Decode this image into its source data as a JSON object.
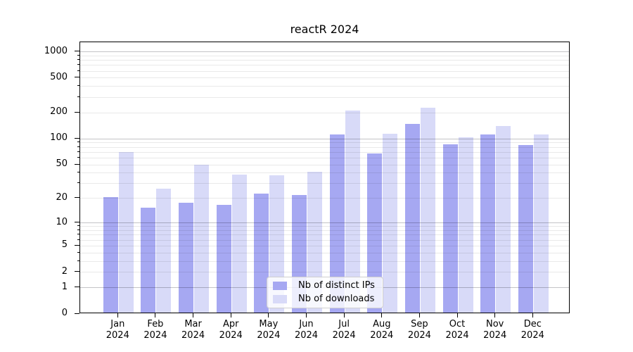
{
  "title": "reactR 2024",
  "colors": {
    "ips": "#a6a8f2",
    "downloads": "#d8daf8",
    "grid_minor": "#e9e9e9",
    "grid_major": "#c3c3c6",
    "axis": "#000000",
    "legend_border": "#cfcfcf"
  },
  "chart_data": {
    "type": "bar",
    "title": "reactR 2024",
    "categories": [
      "Jan 2024",
      "Feb 2024",
      "Mar 2024",
      "Apr 2024",
      "May 2024",
      "Jun 2024",
      "Jul 2024",
      "Aug 2024",
      "Sep 2024",
      "Oct 2024",
      "Nov 2024",
      "Dec 2024"
    ],
    "series": [
      {
        "name": "Nb of distinct IPs",
        "values": [
          20,
          15,
          17,
          16,
          22,
          21,
          108,
          65,
          144,
          84,
          108,
          82
        ]
      },
      {
        "name": "Nb of downloads",
        "values": [
          68,
          25,
          48,
          37,
          36,
          40,
          203,
          111,
          220,
          100,
          135,
          108
        ]
      }
    ],
    "xlabel": "",
    "ylabel": "",
    "yscale": "log1p",
    "yticks": [
      0,
      1,
      2,
      5,
      10,
      20,
      50,
      100,
      200,
      500,
      1000
    ],
    "ylim": [
      0,
      1000
    ],
    "grid": true,
    "legend_position": "lower center"
  }
}
